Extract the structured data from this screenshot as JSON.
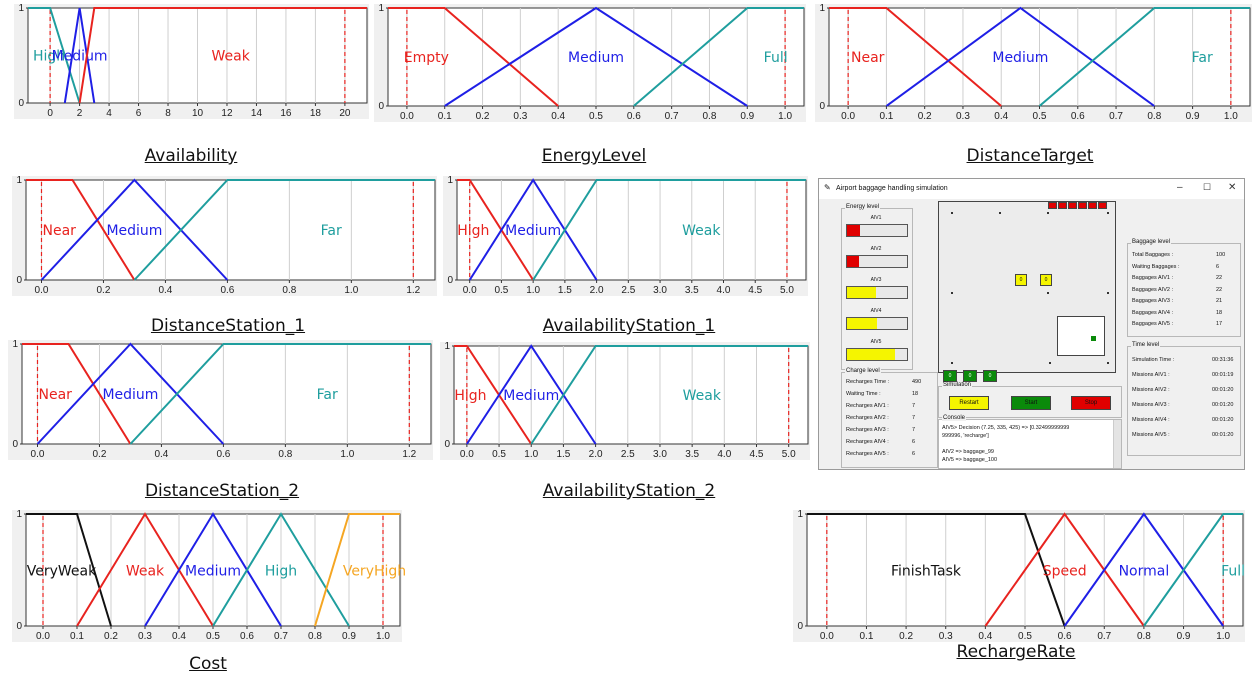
{
  "colors": {
    "red": "#e8231f",
    "blue": "#1f1fe6",
    "teal": "#1f9e9e",
    "black": "#111111",
    "orange": "#f5a623",
    "limit": "#e8231f"
  },
  "charts": [
    {
      "id": "availability",
      "caption": "Availability",
      "xticks": [
        "0",
        "2",
        "4",
        "6",
        "8",
        "10",
        "12",
        "14",
        "16",
        "18",
        "20"
      ],
      "chart_data": {
        "type": "line",
        "title": "Availability",
        "xlim": [
          -1.5,
          21.5
        ],
        "ylim": [
          0,
          1
        ],
        "yticks": [
          "0",
          "1"
        ],
        "limits": [
          0,
          20
        ],
        "series": [
          {
            "name": "High",
            "color": "teal",
            "points": [
              [
                -1.5,
                1
              ],
              [
                0,
                1
              ],
              [
                2,
                0
              ]
            ]
          },
          {
            "name": "Medium",
            "color": "blue",
            "points": [
              [
                1,
                0
              ],
              [
                2,
                1
              ],
              [
                3,
                0
              ]
            ]
          },
          {
            "name": "Weak",
            "color": "red",
            "points": [
              [
                2,
                0
              ],
              [
                3,
                1
              ],
              [
                21.5,
                1
              ]
            ]
          }
        ]
      }
    },
    {
      "id": "energy",
      "caption": "EnergyLevel",
      "xticks": [
        "0.0",
        "0.1",
        "0.2",
        "0.3",
        "0.4",
        "0.5",
        "0.6",
        "0.7",
        "0.8",
        "0.9",
        "1.0"
      ],
      "chart_data": {
        "type": "line",
        "title": "EnergyLevel",
        "xlim": [
          -0.05,
          1.05
        ],
        "ylim": [
          0,
          1
        ],
        "yticks": [
          "0",
          "1"
        ],
        "limits": [
          0,
          1
        ],
        "series": [
          {
            "name": "Empty",
            "color": "red",
            "points": [
              [
                -0.05,
                1
              ],
              [
                0.1,
                1
              ],
              [
                0.4,
                0
              ]
            ]
          },
          {
            "name": "Medium",
            "color": "blue",
            "points": [
              [
                0.1,
                0
              ],
              [
                0.5,
                1
              ],
              [
                0.9,
                0
              ]
            ]
          },
          {
            "name": "Full",
            "color": "teal",
            "points": [
              [
                0.6,
                0
              ],
              [
                0.9,
                1
              ],
              [
                1.05,
                1
              ]
            ]
          }
        ]
      }
    },
    {
      "id": "distancetarget",
      "caption": "DistanceTarget",
      "xticks": [
        "0.0",
        "0.1",
        "0.2",
        "0.3",
        "0.4",
        "0.5",
        "0.6",
        "0.7",
        "0.8",
        "0.9",
        "1.0"
      ],
      "chart_data": {
        "type": "line",
        "title": "DistanceTarget",
        "xlim": [
          -0.05,
          1.05
        ],
        "ylim": [
          0,
          1
        ],
        "yticks": [
          "0",
          "1"
        ],
        "limits": [
          0,
          1
        ],
        "series": [
          {
            "name": "Near",
            "color": "red",
            "points": [
              [
                -0.05,
                1
              ],
              [
                0.1,
                1
              ],
              [
                0.4,
                0
              ]
            ]
          },
          {
            "name": "Medium",
            "color": "blue",
            "points": [
              [
                0.1,
                0
              ],
              [
                0.45,
                1
              ],
              [
                0.8,
                0
              ]
            ]
          },
          {
            "name": "Far",
            "color": "teal",
            "points": [
              [
                0.5,
                0
              ],
              [
                0.8,
                1
              ],
              [
                1.05,
                1
              ]
            ]
          }
        ]
      }
    },
    {
      "id": "distancestation1",
      "caption": "DistanceStation_1",
      "xticks": [
        "0.0",
        "0.2",
        "0.4",
        "0.6",
        "0.8",
        "1.0",
        "1.2"
      ],
      "chart_data": {
        "type": "line",
        "title": "DistanceStation_1",
        "xlim": [
          -0.05,
          1.27
        ],
        "ylim": [
          0,
          1
        ],
        "yticks": [
          "0",
          "1"
        ],
        "limits": [
          0,
          1.2
        ],
        "series": [
          {
            "name": "Near",
            "color": "red",
            "points": [
              [
                -0.05,
                1
              ],
              [
                0.1,
                1
              ],
              [
                0.3,
                0
              ]
            ]
          },
          {
            "name": "Medium",
            "color": "blue",
            "points": [
              [
                0,
                0
              ],
              [
                0.3,
                1
              ],
              [
                0.6,
                0
              ]
            ]
          },
          {
            "name": "Far",
            "color": "teal",
            "points": [
              [
                0.3,
                0
              ],
              [
                0.6,
                1
              ],
              [
                1.27,
                1
              ]
            ]
          }
        ]
      }
    },
    {
      "id": "availabilitystation1",
      "caption": "AvailabilityStation_1",
      "xticks": [
        "0.0",
        "0.5",
        "1.0",
        "1.5",
        "2.0",
        "2.5",
        "3.0",
        "3.5",
        "4.0",
        "4.5",
        "5.0"
      ],
      "chart_data": {
        "type": "line",
        "title": "AvailabilityStation_1",
        "xlim": [
          -0.2,
          5.3
        ],
        "ylim": [
          0,
          1
        ],
        "yticks": [
          "0",
          "1"
        ],
        "limits": [
          0,
          5
        ],
        "series": [
          {
            "name": "High",
            "color": "red",
            "points": [
              [
                -0.2,
                1
              ],
              [
                0,
                1
              ],
              [
                1,
                0
              ]
            ]
          },
          {
            "name": "Medium",
            "color": "blue",
            "points": [
              [
                0,
                0
              ],
              [
                1,
                1
              ],
              [
                2,
                0
              ]
            ]
          },
          {
            "name": "Weak",
            "color": "teal",
            "points": [
              [
                1,
                0
              ],
              [
                2,
                1
              ],
              [
                5.3,
                1
              ]
            ]
          }
        ]
      }
    },
    {
      "id": "distancestation2",
      "caption": "DistanceStation_2",
      "xticks": [
        "0.0",
        "0.2",
        "0.4",
        "0.6",
        "0.8",
        "1.0",
        "1.2"
      ],
      "chart_data": {
        "type": "line",
        "title": "DistanceStation_2",
        "xlim": [
          -0.05,
          1.27
        ],
        "ylim": [
          0,
          1
        ],
        "yticks": [
          "0",
          "1"
        ],
        "limits": [
          0,
          1.2
        ],
        "series": [
          {
            "name": "Near",
            "color": "red",
            "points": [
              [
                -0.05,
                1
              ],
              [
                0.1,
                1
              ],
              [
                0.3,
                0
              ]
            ]
          },
          {
            "name": "Medium",
            "color": "blue",
            "points": [
              [
                0,
                0
              ],
              [
                0.3,
                1
              ],
              [
                0.6,
                0
              ]
            ]
          },
          {
            "name": "Far",
            "color": "teal",
            "points": [
              [
                0.3,
                0
              ],
              [
                0.6,
                1
              ],
              [
                1.27,
                1
              ]
            ]
          }
        ]
      }
    },
    {
      "id": "availabilitystation2",
      "caption": "AvailabilityStation_2",
      "xticks": [
        "0.0",
        "0.5",
        "1.0",
        "1.5",
        "2.0",
        "2.5",
        "3.0",
        "3.5",
        "4.0",
        "4.5",
        "5.0"
      ],
      "chart_data": {
        "type": "line",
        "title": "AvailabilityStation_2",
        "xlim": [
          -0.2,
          5.3
        ],
        "ylim": [
          0,
          1
        ],
        "yticks": [
          "0",
          "1"
        ],
        "limits": [
          0,
          5
        ],
        "series": [
          {
            "name": "High",
            "color": "red",
            "points": [
              [
                -0.2,
                1
              ],
              [
                0,
                1
              ],
              [
                1,
                0
              ]
            ]
          },
          {
            "name": "Medium",
            "color": "blue",
            "points": [
              [
                0,
                0
              ],
              [
                1,
                1
              ],
              [
                2,
                0
              ]
            ]
          },
          {
            "name": "Weak",
            "color": "teal",
            "points": [
              [
                1,
                0
              ],
              [
                2,
                1
              ],
              [
                5.3,
                1
              ]
            ]
          }
        ]
      }
    },
    {
      "id": "cost",
      "caption": "Cost",
      "xticks": [
        "0.0",
        "0.1",
        "0.2",
        "0.3",
        "0.4",
        "0.5",
        "0.6",
        "0.7",
        "0.8",
        "0.9",
        "1.0"
      ],
      "chart_data": {
        "type": "line",
        "title": "Cost",
        "xlim": [
          -0.05,
          1.05
        ],
        "ylim": [
          0,
          1
        ],
        "yticks": [
          "0",
          "1"
        ],
        "limits": [
          0,
          1
        ],
        "series": [
          {
            "name": "VeryWeak",
            "color": "black",
            "points": [
              [
                -0.05,
                1
              ],
              [
                0.1,
                1
              ],
              [
                0.2,
                0
              ]
            ]
          },
          {
            "name": "Weak",
            "color": "red",
            "points": [
              [
                0.1,
                0
              ],
              [
                0.3,
                1
              ],
              [
                0.5,
                0
              ]
            ]
          },
          {
            "name": "Medium",
            "color": "blue",
            "points": [
              [
                0.3,
                0
              ],
              [
                0.5,
                1
              ],
              [
                0.7,
                0
              ]
            ]
          },
          {
            "name": "High",
            "color": "teal",
            "points": [
              [
                0.5,
                0
              ],
              [
                0.7,
                1
              ],
              [
                0.9,
                0
              ]
            ]
          },
          {
            "name": "VeryHigh",
            "color": "orange",
            "points": [
              [
                0.8,
                0
              ],
              [
                0.9,
                1
              ],
              [
                1.05,
                1
              ]
            ]
          }
        ]
      }
    },
    {
      "id": "rechargerate",
      "caption": "RechargeRate",
      "xticks": [
        "0.0",
        "0.1",
        "0.2",
        "0.3",
        "0.4",
        "0.5",
        "0.6",
        "0.7",
        "0.8",
        "0.9",
        "1.0"
      ],
      "chart_data": {
        "type": "line",
        "title": "RechargeRate",
        "xlim": [
          -0.05,
          1.05
        ],
        "ylim": [
          0,
          1
        ],
        "yticks": [
          "0",
          "1"
        ],
        "limits": [
          0,
          1
        ],
        "series": [
          {
            "name": "FinishTask",
            "color": "black",
            "points": [
              [
                -0.05,
                1
              ],
              [
                0.5,
                1
              ],
              [
                0.6,
                0
              ]
            ]
          },
          {
            "name": "Speed",
            "color": "red",
            "points": [
              [
                0.4,
                0
              ],
              [
                0.6,
                1
              ],
              [
                0.8,
                0
              ]
            ]
          },
          {
            "name": "Normal",
            "color": "blue",
            "points": [
              [
                0.6,
                0
              ],
              [
                0.8,
                1
              ],
              [
                1.0,
                0
              ]
            ]
          },
          {
            "name": "Full",
            "color": "teal",
            "points": [
              [
                0.8,
                0
              ],
              [
                1.0,
                1
              ],
              [
                1.05,
                1
              ]
            ]
          }
        ]
      }
    }
  ],
  "sim": {
    "title": "Airport baggage handling simulation",
    "energy_label": "Energy level",
    "aivs": [
      {
        "name": "AIV1",
        "level": 0.22,
        "color": "#e00000"
      },
      {
        "name": "AIV2",
        "level": 0.2,
        "color": "#e00000"
      },
      {
        "name": "AIV3",
        "level": 0.48,
        "color": "#f5f500"
      },
      {
        "name": "AIV4",
        "level": 0.5,
        "color": "#f5f500"
      },
      {
        "name": "AIV5",
        "level": 0.8,
        "color": "#f5f500"
      }
    ],
    "charge_label": "Charge level",
    "charge": [
      [
        "Recharges Time :",
        "490"
      ],
      [
        "Waiting Time :",
        "18"
      ],
      [
        "Recharges AIV1 :",
        "7"
      ],
      [
        "Recharges AIV2 :",
        "7"
      ],
      [
        "Recharges AIV3 :",
        "7"
      ],
      [
        "Recharges AIV4 :",
        "6"
      ],
      [
        "Recharges AIV5 :",
        "6"
      ]
    ],
    "simulation_label": "Simulation",
    "buttons": {
      "restart": "Restart",
      "start": "Start",
      "stop": "Stop"
    },
    "console_label": "Console",
    "console": [
      "AIV5> Decision (7.25, 335, 425) => [0.32499999999",
      "999996, 'recharge']",
      "",
      "AIV2 => baggage_99",
      "AIV5 => baggage_100"
    ],
    "baggage_label": "Baggage level",
    "baggage": [
      [
        "Total Baggages :",
        "100"
      ],
      [
        "Waiting Baggages :",
        "6"
      ],
      [
        "Baggages AIV1 :",
        "22"
      ],
      [
        "Baggages AIV2 :",
        "22"
      ],
      [
        "Baggages AIV3 :",
        "21"
      ],
      [
        "Baggages AIV4 :",
        "18"
      ],
      [
        "Baggages AIV5 :",
        "17"
      ]
    ],
    "time_label": "Time level",
    "time": [
      [
        "Simulation Time :",
        "00:31:36"
      ],
      [
        "Missions AIV1 :",
        "00:01:19"
      ],
      [
        "Missions AIV2 :",
        "00:01:20"
      ],
      [
        "Missions AIV3 :",
        "00:01:20"
      ],
      [
        "Missions AIV4 :",
        "00:01:20"
      ],
      [
        "Missions AIV5 :",
        "00:01:20"
      ]
    ],
    "arena_yellow": [
      "0",
      "0"
    ],
    "arena_green": [
      "0",
      "0",
      "0"
    ]
  }
}
